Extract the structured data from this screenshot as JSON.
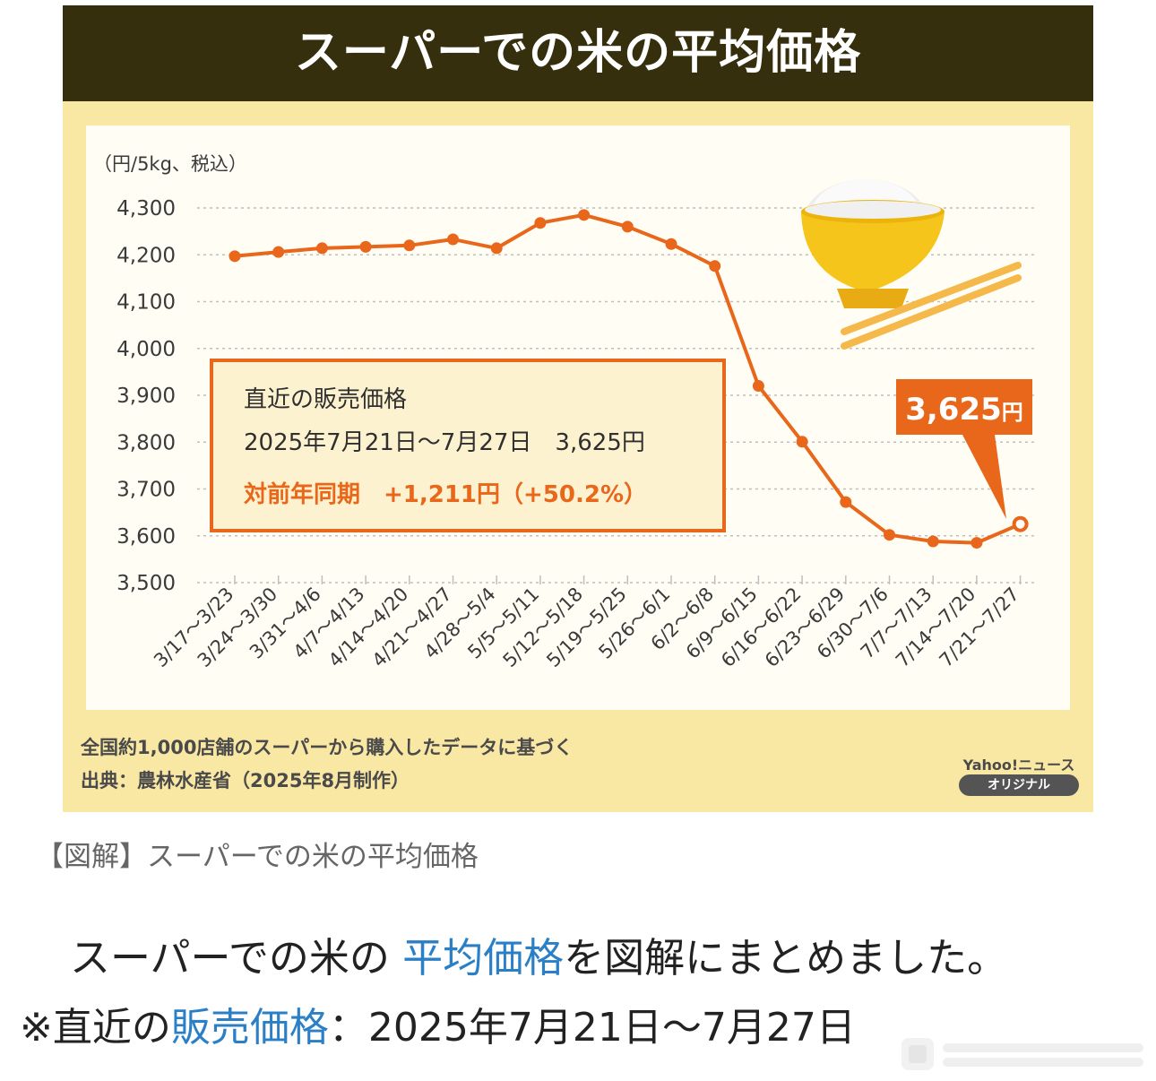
{
  "graphic": {
    "title": "スーパーでの米の平均価格",
    "unit_label": "（円/5kg、税込）",
    "info_box": {
      "line1": "直近の販売価格",
      "line2": "2025年7月21日～7月27日　3,625円",
      "line3": "対前年同期　+1,211円（+50.2%）"
    },
    "latest_value": "3,625",
    "latest_unit": "円",
    "source_note_1": "全国約1,000店舗のスーパーから購入したデータに基づく",
    "source_note_2": "出典：農林水産省（2025年8月制作）",
    "brand_name": "Yahoo!ニュース",
    "brand_badge": "オリジナル"
  },
  "chart_data": {
    "type": "line",
    "title": "スーパーでの米の平均価格",
    "ylabel": "（円/5kg、税込）",
    "xlabel": "",
    "ylim": [
      3500,
      4300
    ],
    "yticks": [
      "3,500",
      "3,600",
      "3,700",
      "3,800",
      "3,900",
      "4,000",
      "4,100",
      "4,200",
      "4,300"
    ],
    "grid": "horizontal dotted",
    "categories": [
      "3/17～3/23",
      "3/24～3/30",
      "3/31～4/6",
      "4/7～4/13",
      "4/14～4/20",
      "4/21～4/27",
      "4/28～5/4",
      "5/5～5/11",
      "5/12～5/18",
      "5/19～5/25",
      "5/26～6/1",
      "6/2～6/8",
      "6/9～6/15",
      "6/16～6/22",
      "6/23～6/29",
      "6/30～7/6",
      "7/7～7/13",
      "7/14～7/20",
      "7/21～7/27"
    ],
    "values": [
      4197,
      4206,
      4214,
      4217,
      4220,
      4233,
      4214,
      4268,
      4285,
      4260,
      4223,
      4176,
      3920,
      3801,
      3672,
      3602,
      3588,
      3585,
      3625
    ],
    "color": "#e8671a"
  },
  "caption": {
    "text": "【図解】スーパーでの米の平均価格"
  },
  "article": {
    "line1_pre": "スーパーでの米の ",
    "line1_link": "平均価格",
    "line1_post": "を図解にまとめました。",
    "line2_pre": "※直近の",
    "line2_link": "販売価格",
    "line2_post": "：2025年7月21日～7月27日"
  },
  "colors": {
    "accent": "#e8671a",
    "header": "#352f0e",
    "background": "#f9e7a4",
    "link": "#2a7fc6"
  },
  "icons": [
    "rice-bowl-icon",
    "chopsticks-icon"
  ]
}
